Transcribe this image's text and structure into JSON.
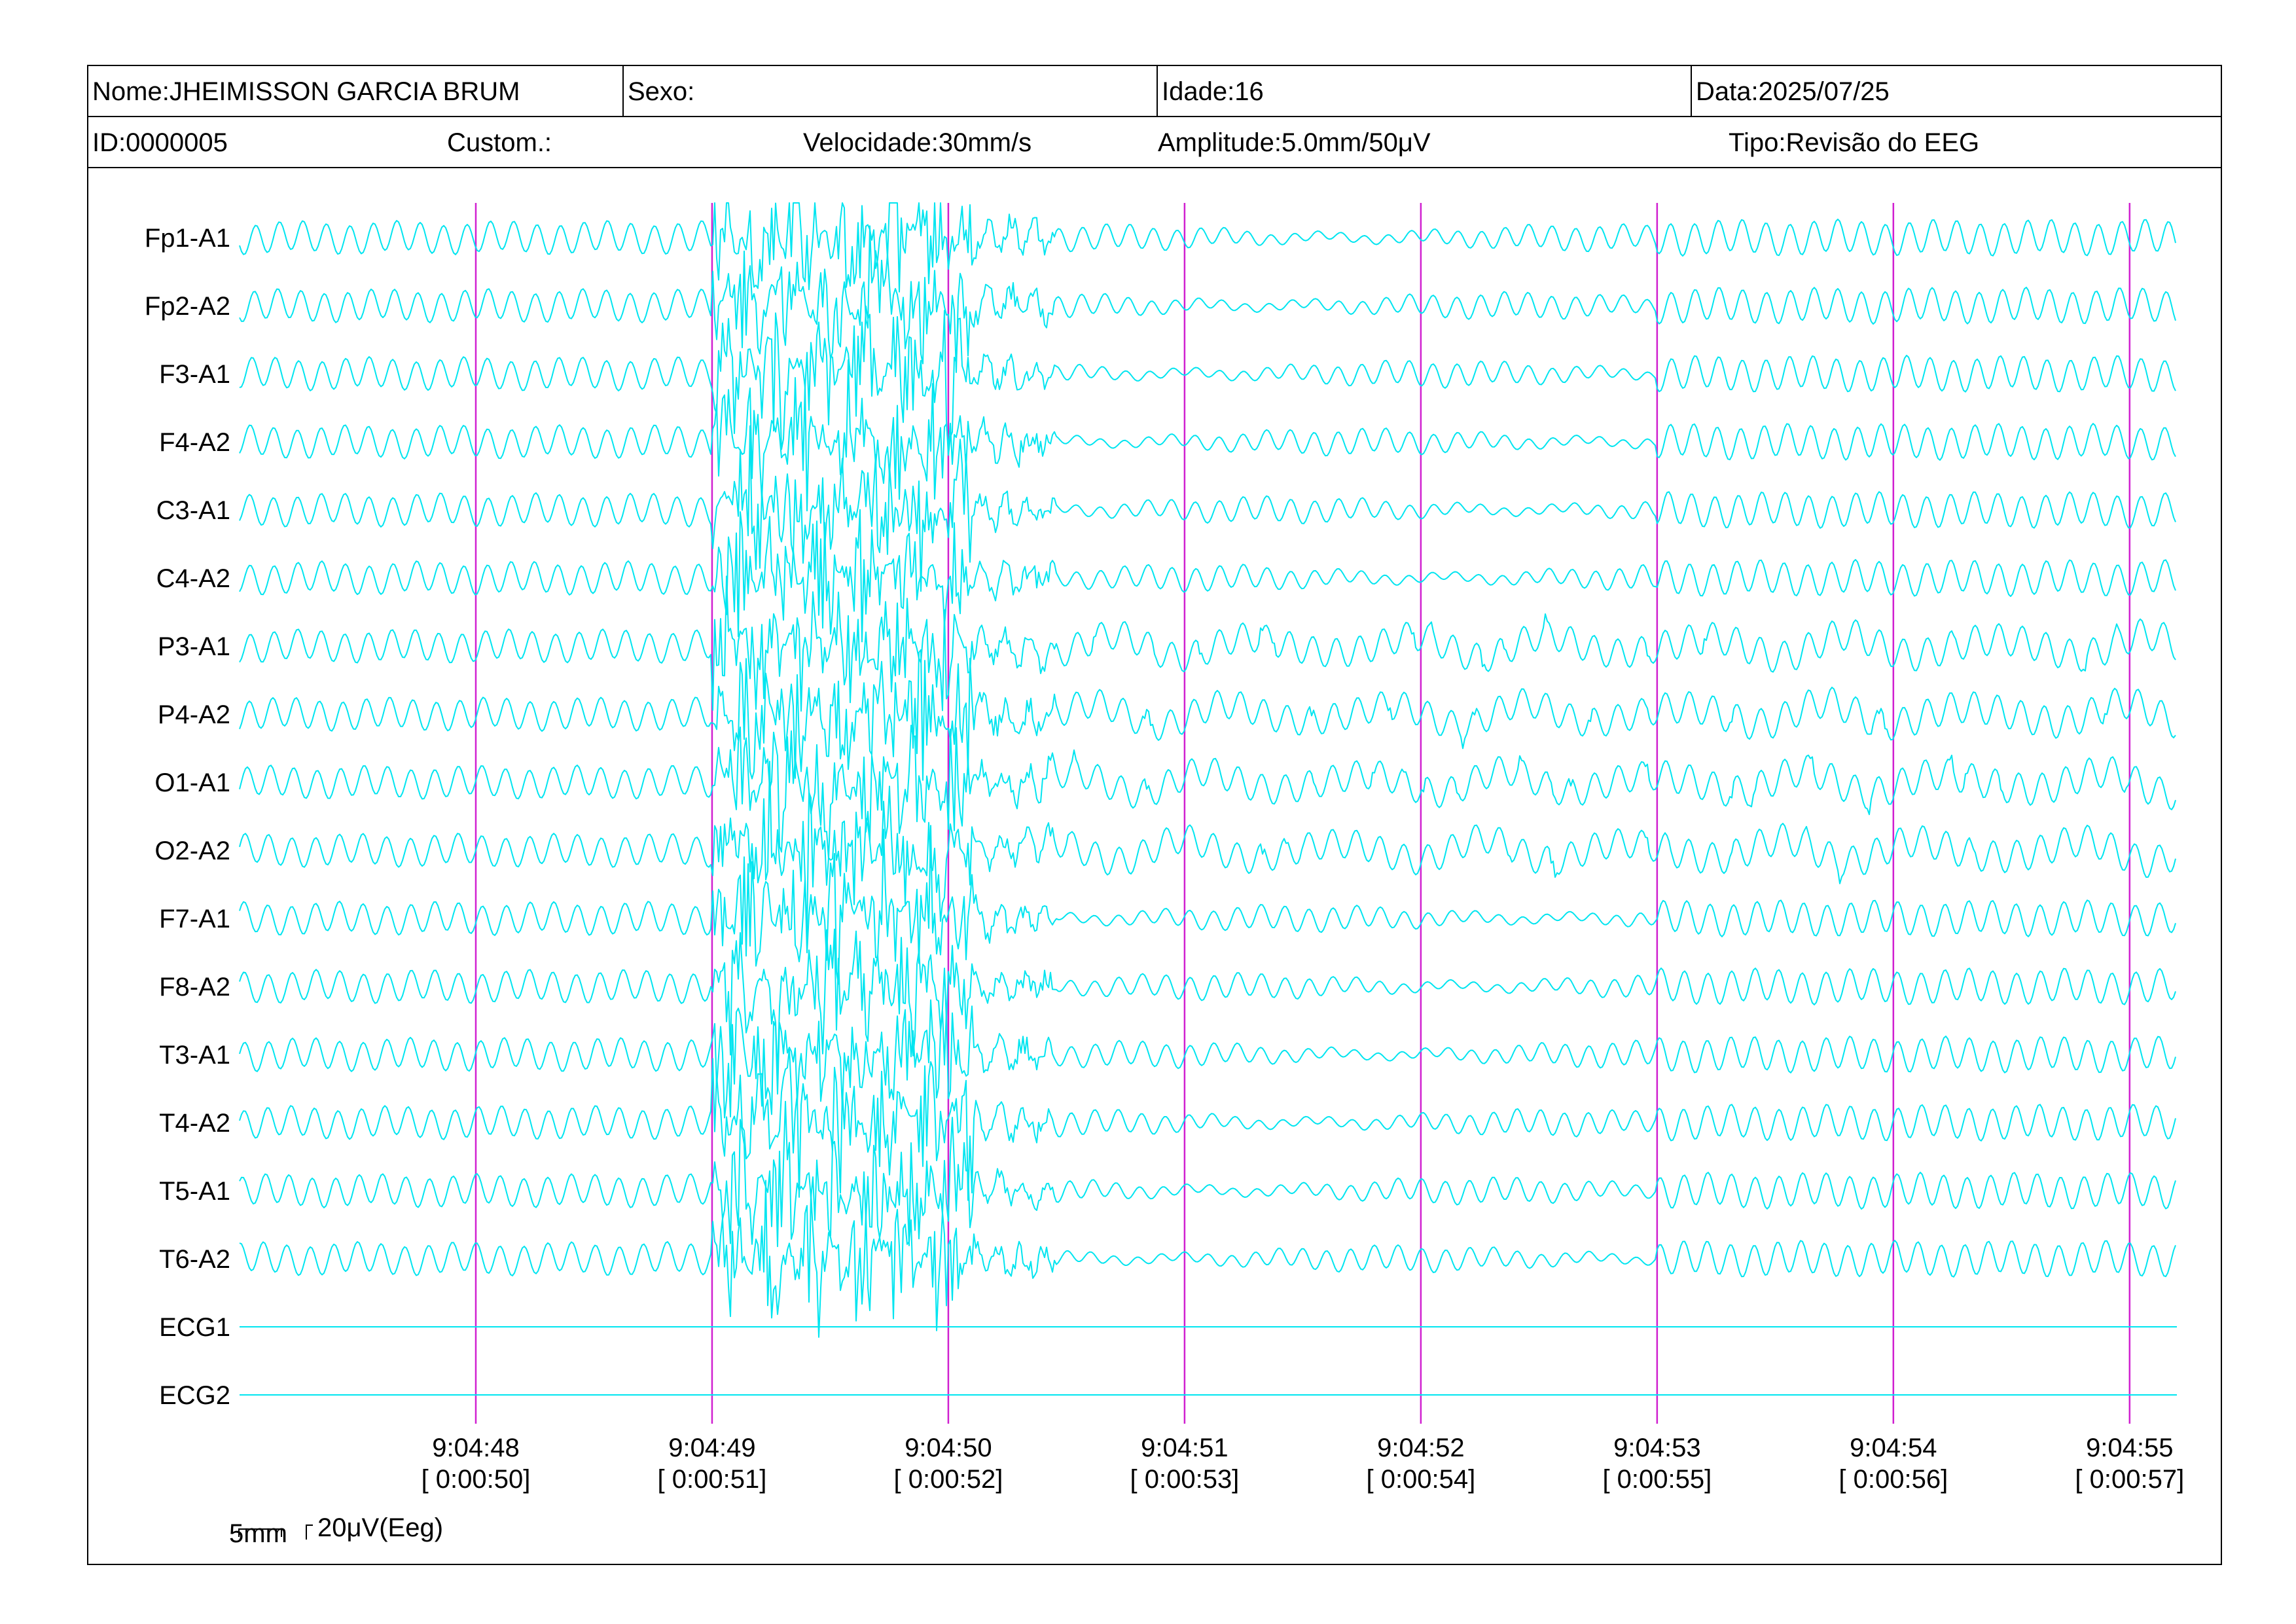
{
  "header": {
    "nome": "Nome:JHEIMISSON GARCIA BRUM",
    "sexo": "Sexo:",
    "idade": "Idade:16",
    "data": "Data:2025/07/25",
    "id": "ID:0000005",
    "custom": "Custom.:",
    "velocidade": "Velocidade:30mm/s",
    "amplitude": "Amplitude:5.0mm/50μV",
    "tipo": "Tipo:Revisão do EEG"
  },
  "scale": {
    "time_bar": "5mm",
    "amp_bar": "20μV(Eeg)"
  },
  "colors": {
    "trace": "#00e5f0",
    "second_marker": "#d020d0"
  },
  "chart_data": {
    "type": "line",
    "title": "",
    "channels": [
      "Fp1-A1",
      "Fp2-A2",
      "F3-A1",
      "F4-A2",
      "C3-A1",
      "C4-A2",
      "P3-A1",
      "P4-A2",
      "O1-A1",
      "O2-A2",
      "F7-A1",
      "F8-A2",
      "T3-A1",
      "T4-A2",
      "T5-A1",
      "T6-A2",
      "ECG1",
      "ECG2"
    ],
    "flat_channels": [
      "ECG1",
      "ECG2"
    ],
    "time_ticks": [
      {
        "clock": "9:04:48",
        "elapsed": "[ 0:00:50]"
      },
      {
        "clock": "9:04:49",
        "elapsed": "[ 0:00:51]"
      },
      {
        "clock": "9:04:50",
        "elapsed": "[ 0:00:52]"
      },
      {
        "clock": "9:04:51",
        "elapsed": "[ 0:00:53]"
      },
      {
        "clock": "9:04:52",
        "elapsed": "[ 0:00:54]"
      },
      {
        "clock": "9:04:53",
        "elapsed": "[ 0:00:55]"
      },
      {
        "clock": "9:04:54",
        "elapsed": "[ 0:00:56]"
      },
      {
        "clock": "9:04:55",
        "elapsed": "[ 0:00:57]"
      }
    ],
    "x_range_seconds": [
      -1,
      7.2
    ],
    "dominant_frequency_hz": 10,
    "artifact_interval_seconds": [
      1.0,
      2.1
    ],
    "paper_speed": "30mm/s",
    "sensitivity": "5.0mm/50μV"
  }
}
